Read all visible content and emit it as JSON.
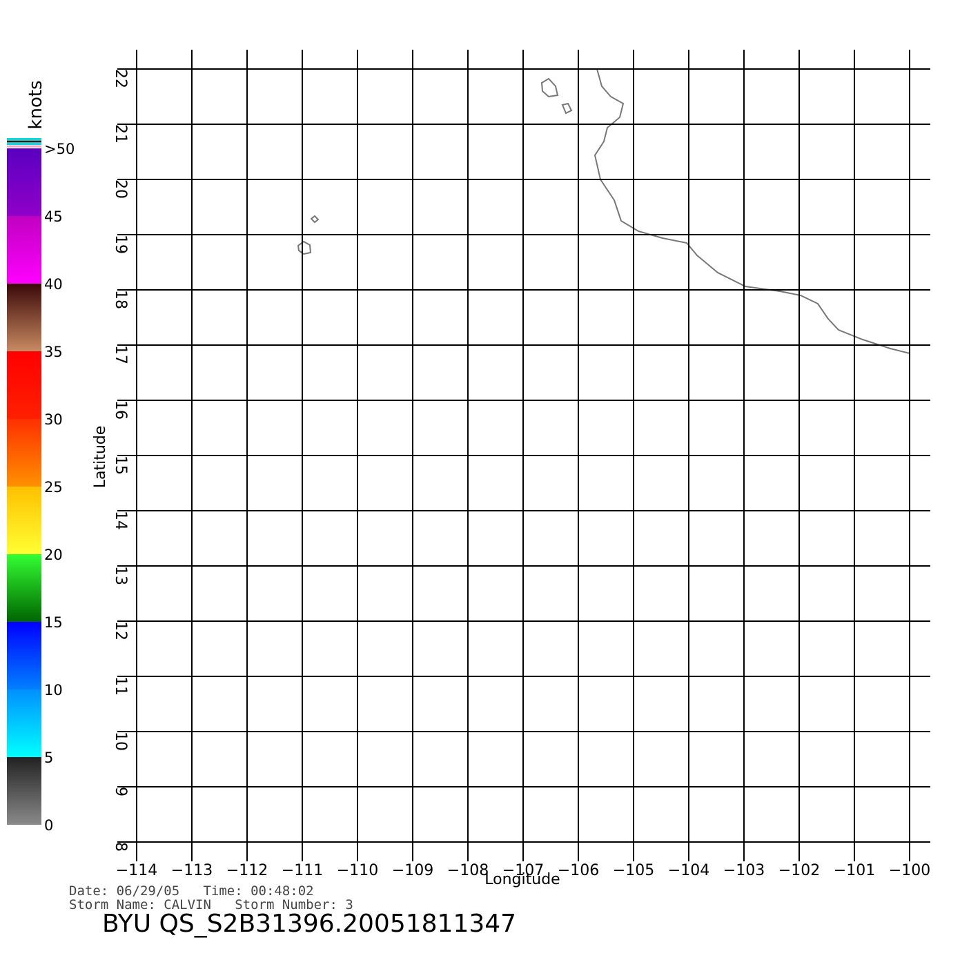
{
  "chart_data": {
    "type": "wind-barb-map",
    "xlabel": "Longitude",
    "ylabel": "Latitude",
    "xlim": [
      -114,
      -100
    ],
    "ylim": [
      8,
      22
    ],
    "xticks": [
      {
        "value": -114,
        "label": "−114"
      },
      {
        "value": -113,
        "label": "−113"
      },
      {
        "value": -112,
        "label": "−112"
      },
      {
        "value": -111,
        "label": "−111"
      },
      {
        "value": -110,
        "label": "−110"
      },
      {
        "value": -109,
        "label": "−109"
      },
      {
        "value": -108,
        "label": "−108"
      },
      {
        "value": -107,
        "label": "−107"
      },
      {
        "value": -106,
        "label": "−106"
      },
      {
        "value": -105,
        "label": "−105"
      },
      {
        "value": -104,
        "label": "−104"
      },
      {
        "value": -103,
        "label": "−103"
      },
      {
        "value": -102,
        "label": "−102"
      },
      {
        "value": -101,
        "label": "−101"
      },
      {
        "value": -100,
        "label": "−100"
      }
    ],
    "yticks": [
      8,
      9,
      10,
      11,
      12,
      13,
      14,
      15,
      16,
      17,
      18,
      19,
      20,
      21,
      22
    ],
    "grid": true,
    "colorbar": {
      "label": "knots",
      "lim": [
        0,
        50
      ],
      "ticks": [
        0,
        5,
        10,
        15,
        20,
        25,
        30,
        35,
        40,
        45,
        {
          "value": 50,
          "label": ">50"
        }
      ],
      "colors": [
        [
          "#8a8a8a",
          "#222222"
        ],
        [
          "#00ffff",
          "#0090ff"
        ],
        [
          "#0080ff",
          "#0000ff"
        ],
        [
          "#006400",
          "#33ff33"
        ],
        [
          "#ffff33",
          "#ffc000"
        ],
        [
          "#ff9000",
          "#ff3000"
        ],
        [
          "#ff2000",
          "#ff0000"
        ],
        [
          "#c88a62",
          "#3a0808"
        ],
        [
          "#ff00ff",
          "#c000c0"
        ],
        [
          "#9000c8",
          "#5a00c0"
        ]
      ]
    },
    "annotations": [
      "Date: 06/29/05   Time: 00:48:02",
      "Storm Name: CALVIN   Storm Number: 3"
    ],
    "title": "BYU QS_S2B31396.20051811347"
  }
}
